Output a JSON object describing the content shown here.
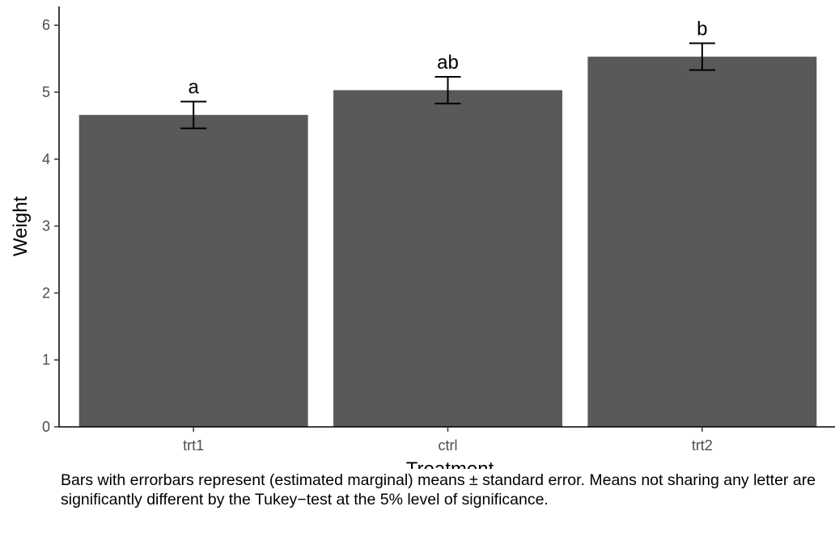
{
  "chart_data": {
    "type": "bar",
    "categories": [
      "trt1",
      "ctrl",
      "trt2"
    ],
    "values": [
      4.66,
      5.03,
      5.53
    ],
    "error_low": [
      4.46,
      4.83,
      5.33
    ],
    "error_high": [
      4.86,
      5.23,
      5.73
    ],
    "letters": [
      "a",
      "ab",
      "b"
    ],
    "xlabel": "Treatment",
    "ylabel": "Weight",
    "ylim": [
      0,
      6.25
    ],
    "yticks": [
      0,
      1,
      2,
      3,
      4,
      5,
      6
    ],
    "grid": false,
    "legend": "none",
    "bar_color": "#595959",
    "caption": "Bars with errorbars represent (estimated marginal) means ± standard error. Means not sharing any letter are significantly different by the Tukey−test at the 5% level of significance."
  }
}
